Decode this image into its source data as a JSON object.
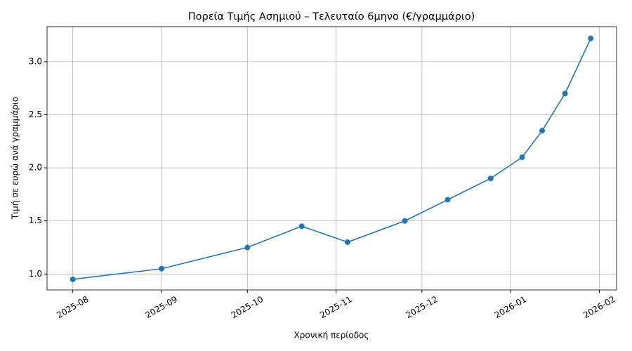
{
  "chart_data": {
    "type": "line",
    "title": "Πορεία Τιμής Ασημιού – Τελευταίο 6μηνο (€/γραμμάριο)",
    "x_label": "Χρονική περίοδος",
    "y_label": "Τιμή σε ευρώ ανά γραμμάριο",
    "x": [
      "2025-08-01",
      "2025-09-01",
      "2025-10-01",
      "2025-10-20",
      "2025-11-05",
      "2025-11-25",
      "2025-12-10",
      "2025-12-25",
      "2026-01-05",
      "2026-01-12",
      "2026-01-20",
      "2026-01-29"
    ],
    "values": [
      0.95,
      1.05,
      1.25,
      1.45,
      1.3,
      1.5,
      1.7,
      1.9,
      2.1,
      2.35,
      2.7,
      3.22
    ],
    "color": "#1f77b4",
    "xlim": [
      "2025-07-23",
      "2026-02-07"
    ],
    "xticks": [
      {
        "value": "2025-08-01",
        "label": "2025-08"
      },
      {
        "value": "2025-09-01",
        "label": "2025-09"
      },
      {
        "value": "2025-10-01",
        "label": "2025-10"
      },
      {
        "value": "2025-11-01",
        "label": "2025-11"
      },
      {
        "value": "2025-12-01",
        "label": "2025-12"
      },
      {
        "value": "2026-01-01",
        "label": "2026-01"
      },
      {
        "value": "2026-02-01",
        "label": "2026-02"
      }
    ],
    "ylim": [
      0.85,
      3.33
    ],
    "yticks": [
      {
        "value": 1.0,
        "label": "1.0"
      },
      {
        "value": 1.5,
        "label": "1.5"
      },
      {
        "value": 2.0,
        "label": "2.0"
      },
      {
        "value": 2.5,
        "label": "2.5"
      },
      {
        "value": 3.0,
        "label": "3.0"
      }
    ],
    "grid": true
  }
}
